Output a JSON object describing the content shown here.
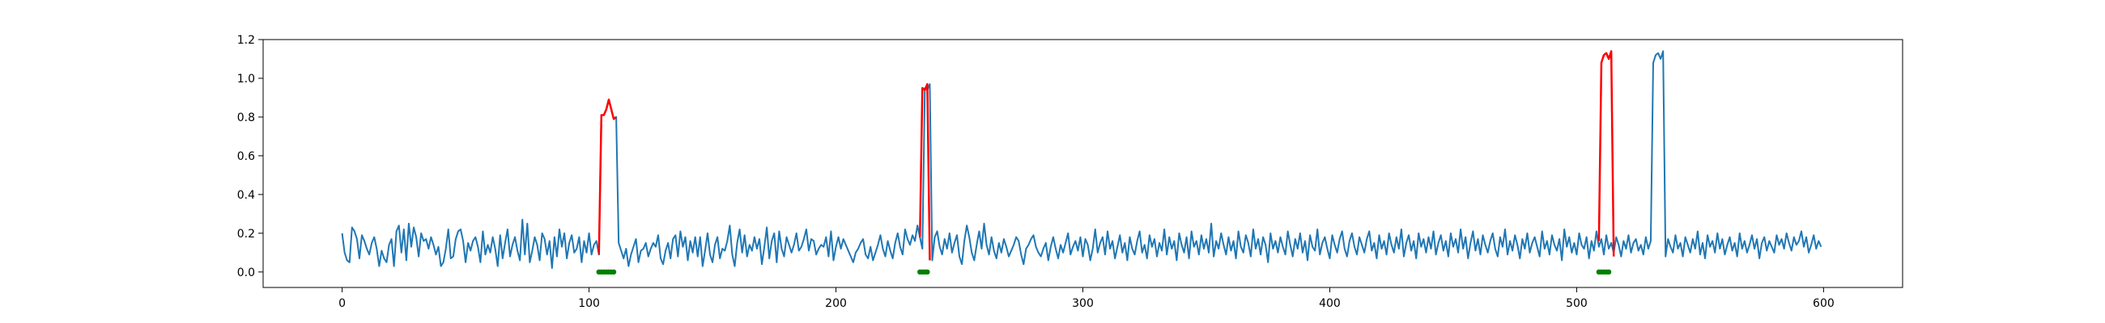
{
  "chart_data": {
    "type": "line",
    "title": "",
    "xlabel": "",
    "ylabel": "",
    "xlim": [
      -32,
      632
    ],
    "ylim": [
      -0.08,
      1.2
    ],
    "x_ticks": [
      0,
      100,
      200,
      300,
      400,
      500,
      600
    ],
    "x_tick_labels": [
      "0",
      "100",
      "200",
      "300",
      "400",
      "500",
      "600"
    ],
    "y_ticks": [
      0.0,
      0.2,
      0.4,
      0.6,
      0.8,
      1.0,
      1.2
    ],
    "y_tick_labels": [
      "0.0",
      "0.2",
      "0.4",
      "0.6",
      "0.8",
      "1.0",
      "1.2"
    ],
    "grid": false,
    "legend": "none",
    "colors": {
      "signal": "#1f77b4",
      "anomaly": "#ff0000",
      "marker": "#008000",
      "axes": "#000000",
      "background": "#ffffff"
    },
    "series": [
      {
        "style": "line",
        "color": "#1f77b4",
        "x_start": 0,
        "x_step": 1,
        "values": [
          0.2,
          0.1,
          0.06,
          0.05,
          0.23,
          0.21,
          0.17,
          0.07,
          0.19,
          0.16,
          0.12,
          0.09,
          0.15,
          0.18,
          0.12,
          0.03,
          0.11,
          0.07,
          0.05,
          0.14,
          0.17,
          0.03,
          0.21,
          0.24,
          0.1,
          0.22,
          0.06,
          0.25,
          0.13,
          0.23,
          0.18,
          0.08,
          0.2,
          0.16,
          0.17,
          0.12,
          0.18,
          0.14,
          0.09,
          0.13,
          0.03,
          0.05,
          0.12,
          0.22,
          0.07,
          0.08,
          0.17,
          0.21,
          0.22,
          0.16,
          0.05,
          0.15,
          0.11,
          0.16,
          0.18,
          0.13,
          0.05,
          0.21,
          0.09,
          0.14,
          0.1,
          0.18,
          0.12,
          0.03,
          0.19,
          0.07,
          0.15,
          0.22,
          0.08,
          0.14,
          0.18,
          0.11,
          0.06,
          0.27,
          0.09,
          0.25,
          0.05,
          0.11,
          0.18,
          0.14,
          0.06,
          0.2,
          0.17,
          0.09,
          0.16,
          0.02,
          0.18,
          0.08,
          0.22,
          0.13,
          0.2,
          0.07,
          0.15,
          0.19,
          0.1,
          0.12,
          0.18,
          0.05,
          0.16,
          0.1,
          0.2,
          0.09,
          0.14,
          0.16,
          0.09,
          0.81,
          0.81,
          0.84,
          0.89,
          0.84,
          0.79,
          0.8,
          0.15,
          0.11,
          0.07,
          0.12,
          0.03,
          0.09,
          0.13,
          0.17,
          0.05,
          0.11,
          0.12,
          0.15,
          0.08,
          0.12,
          0.15,
          0.13,
          0.19,
          0.07,
          0.04,
          0.11,
          0.15,
          0.07,
          0.17,
          0.19,
          0.08,
          0.21,
          0.13,
          0.18,
          0.06,
          0.16,
          0.1,
          0.18,
          0.08,
          0.18,
          0.03,
          0.11,
          0.2,
          0.09,
          0.05,
          0.14,
          0.18,
          0.07,
          0.12,
          0.11,
          0.16,
          0.24,
          0.09,
          0.03,
          0.15,
          0.22,
          0.1,
          0.19,
          0.08,
          0.14,
          0.11,
          0.18,
          0.12,
          0.17,
          0.04,
          0.13,
          0.23,
          0.07,
          0.16,
          0.2,
          0.05,
          0.21,
          0.12,
          0.08,
          0.18,
          0.14,
          0.1,
          0.14,
          0.2,
          0.11,
          0.13,
          0.17,
          0.22,
          0.11,
          0.17,
          0.16,
          0.09,
          0.12,
          0.14,
          0.13,
          0.18,
          0.08,
          0.21,
          0.06,
          0.13,
          0.18,
          0.12,
          0.17,
          0.14,
          0.11,
          0.08,
          0.05,
          0.1,
          0.12,
          0.15,
          0.17,
          0.09,
          0.07,
          0.13,
          0.06,
          0.1,
          0.14,
          0.19,
          0.12,
          0.08,
          0.16,
          0.11,
          0.07,
          0.15,
          0.2,
          0.13,
          0.09,
          0.22,
          0.17,
          0.14,
          0.19,
          0.16,
          0.24,
          0.18,
          0.12,
          0.95,
          0.94,
          0.97,
          0.06,
          0.18,
          0.21,
          0.13,
          0.09,
          0.17,
          0.12,
          0.2,
          0.1,
          0.15,
          0.19,
          0.08,
          0.04,
          0.16,
          0.24,
          0.18,
          0.1,
          0.06,
          0.14,
          0.21,
          0.12,
          0.25,
          0.14,
          0.09,
          0.18,
          0.11,
          0.07,
          0.15,
          0.1,
          0.17,
          0.13,
          0.08,
          0.11,
          0.14,
          0.18,
          0.16,
          0.09,
          0.04,
          0.12,
          0.14,
          0.17,
          0.19,
          0.13,
          0.1,
          0.08,
          0.12,
          0.15,
          0.06,
          0.13,
          0.18,
          0.12,
          0.07,
          0.14,
          0.1,
          0.15,
          0.2,
          0.09,
          0.13,
          0.16,
          0.11,
          0.18,
          0.08,
          0.17,
          0.14,
          0.06,
          0.12,
          0.22,
          0.1,
          0.15,
          0.18,
          0.09,
          0.21,
          0.12,
          0.16,
          0.07,
          0.13,
          0.19,
          0.1,
          0.15,
          0.06,
          0.18,
          0.12,
          0.09,
          0.16,
          0.21,
          0.1,
          0.14,
          0.07,
          0.19,
          0.13,
          0.17,
          0.08,
          0.15,
          0.11,
          0.22,
          0.09,
          0.18,
          0.12,
          0.16,
          0.06,
          0.2,
          0.14,
          0.1,
          0.18,
          0.07,
          0.21,
          0.13,
          0.16,
          0.09,
          0.19,
          0.12,
          0.17,
          0.1,
          0.25,
          0.08,
          0.16,
          0.12,
          0.2,
          0.14,
          0.09,
          0.18,
          0.11,
          0.16,
          0.07,
          0.21,
          0.13,
          0.1,
          0.19,
          0.15,
          0.08,
          0.22,
          0.12,
          0.17,
          0.09,
          0.18,
          0.14,
          0.05,
          0.2,
          0.12,
          0.16,
          0.1,
          0.18,
          0.13,
          0.09,
          0.21,
          0.14,
          0.08,
          0.17,
          0.12,
          0.2,
          0.1,
          0.16,
          0.06,
          0.19,
          0.13,
          0.11,
          0.22,
          0.09,
          0.15,
          0.18,
          0.12,
          0.07,
          0.19,
          0.14,
          0.1,
          0.17,
          0.21,
          0.12,
          0.08,
          0.16,
          0.2,
          0.13,
          0.09,
          0.18,
          0.14,
          0.1,
          0.17,
          0.21,
          0.11,
          0.15,
          0.07,
          0.19,
          0.12,
          0.16,
          0.09,
          0.2,
          0.14,
          0.1,
          0.18,
          0.12,
          0.22,
          0.08,
          0.15,
          0.19,
          0.11,
          0.16,
          0.07,
          0.2,
          0.13,
          0.17,
          0.1,
          0.18,
          0.12,
          0.21,
          0.09,
          0.15,
          0.19,
          0.11,
          0.16,
          0.08,
          0.2,
          0.13,
          0.17,
          0.1,
          0.22,
          0.12,
          0.18,
          0.07,
          0.15,
          0.21,
          0.11,
          0.17,
          0.09,
          0.19,
          0.14,
          0.1,
          0.16,
          0.2,
          0.12,
          0.08,
          0.18,
          0.13,
          0.22,
          0.09,
          0.16,
          0.11,
          0.19,
          0.14,
          0.07,
          0.17,
          0.12,
          0.2,
          0.1,
          0.15,
          0.18,
          0.13,
          0.08,
          0.21,
          0.12,
          0.16,
          0.09,
          0.19,
          0.14,
          0.11,
          0.17,
          0.06,
          0.22,
          0.13,
          0.18,
          0.1,
          0.15,
          0.09,
          0.2,
          0.14,
          0.12,
          0.18,
          0.07,
          0.16,
          0.11,
          0.21,
          0.13,
          0.17,
          0.09,
          0.19,
          0.12,
          0.15,
          0.1,
          0.18,
          0.14,
          0.08,
          0.16,
          0.12,
          0.19,
          0.1,
          0.15,
          0.17,
          0.11,
          0.14,
          0.09,
          0.18,
          0.12,
          0.16,
          1.08,
          1.12,
          1.13,
          1.1,
          1.14,
          0.08,
          0.17,
          0.13,
          0.1,
          0.19,
          0.12,
          0.15,
          0.08,
          0.18,
          0.14,
          0.1,
          0.17,
          0.12,
          0.21,
          0.09,
          0.15,
          0.07,
          0.19,
          0.13,
          0.16,
          0.1,
          0.2,
          0.12,
          0.17,
          0.09,
          0.14,
          0.18,
          0.11,
          0.15,
          0.08,
          0.2,
          0.12,
          0.16,
          0.1,
          0.14,
          0.19,
          0.12,
          0.17,
          0.07,
          0.15,
          0.18,
          0.11,
          0.16,
          0.13,
          0.1,
          0.19,
          0.14,
          0.17,
          0.12,
          0.2,
          0.15,
          0.11,
          0.18,
          0.14,
          0.16,
          0.21,
          0.13,
          0.18,
          0.1,
          0.14,
          0.19,
          0.12,
          0.16,
          0.13
        ]
      },
      {
        "style": "line",
        "color": "#ff0000",
        "x": [
          104,
          105,
          106,
          107,
          108,
          109,
          110,
          111
        ],
        "y": [
          0.09,
          0.81,
          0.81,
          0.84,
          0.89,
          0.84,
          0.79,
          0.8
        ]
      },
      {
        "style": "line",
        "color": "#ff0000",
        "x": [
          234,
          235,
          236,
          237,
          238
        ],
        "y": [
          0.18,
          0.95,
          0.94,
          0.97,
          0.06
        ]
      },
      {
        "style": "line",
        "color": "#ff0000",
        "x": [
          509,
          510,
          511,
          512,
          513,
          514,
          515
        ],
        "y": [
          0.16,
          1.08,
          1.12,
          1.13,
          1.1,
          1.14,
          0.08
        ]
      }
    ],
    "markers": {
      "color": "#008000",
      "y": 0.0,
      "x": [
        104,
        105,
        106,
        107,
        108,
        109,
        110,
        234,
        235,
        236,
        237,
        509,
        510,
        511,
        512,
        513
      ]
    }
  }
}
